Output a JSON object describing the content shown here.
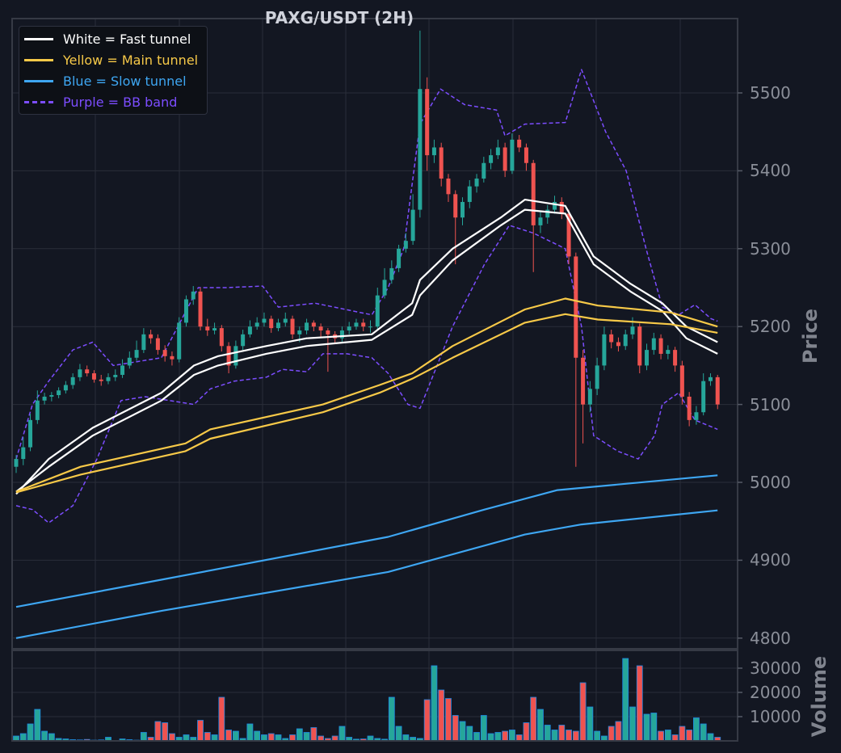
{
  "chart_data": {
    "type": "candlestick",
    "title": "PAXG/USDT (2H)",
    "ylabel": "Price",
    "volume_label": "Volume",
    "ylim": [
      4790,
      5595
    ],
    "volume_ylim": [
      0,
      37000
    ],
    "yticks": [
      4800,
      4900,
      5000,
      5100,
      5200,
      5300,
      5400,
      5500
    ],
    "volume_yticks": [
      10000,
      20000,
      30000
    ],
    "grid": true,
    "legend_position": "top-left",
    "legend": [
      {
        "label": "White = Fast tunnel",
        "color": "#ffffff",
        "style": "solid"
      },
      {
        "label": "Yellow = Main tunnel",
        "color": "#f7c948",
        "style": "solid"
      },
      {
        "label": "Blue = Slow tunnel",
        "color": "#3ea6f2",
        "style": "solid"
      },
      {
        "label": "Purple = BB band",
        "color": "#7c4dff",
        "style": "dashed"
      }
    ],
    "colors": {
      "up": "#26a69a",
      "down": "#ef5350",
      "volume_edge": "#1e88e5"
    },
    "candles_ohlc": [
      [
        5020,
        5035,
        5012,
        5030
      ],
      [
        5030,
        5058,
        5022,
        5045
      ],
      [
        5045,
        5088,
        5040,
        5080
      ],
      [
        5080,
        5118,
        5075,
        5105
      ],
      [
        5105,
        5115,
        5100,
        5110
      ],
      [
        5110,
        5116,
        5104,
        5112
      ],
      [
        5112,
        5122,
        5108,
        5118
      ],
      [
        5118,
        5130,
        5114,
        5125
      ],
      [
        5125,
        5140,
        5120,
        5135
      ],
      [
        5135,
        5152,
        5130,
        5145
      ],
      [
        5145,
        5150,
        5136,
        5140
      ],
      [
        5140,
        5144,
        5128,
        5132
      ],
      [
        5132,
        5138,
        5124,
        5130
      ],
      [
        5130,
        5140,
        5126,
        5135
      ],
      [
        5135,
        5145,
        5130,
        5138
      ],
      [
        5138,
        5158,
        5134,
        5150
      ],
      [
        5150,
        5168,
        5146,
        5160
      ],
      [
        5160,
        5182,
        5156,
        5170
      ],
      [
        5170,
        5198,
        5166,
        5190
      ],
      [
        5190,
        5196,
        5178,
        5185
      ],
      [
        5185,
        5190,
        5164,
        5170
      ],
      [
        5170,
        5176,
        5155,
        5162
      ],
      [
        5162,
        5168,
        5150,
        5158
      ],
      [
        5158,
        5212,
        5154,
        5205
      ],
      [
        5205,
        5240,
        5200,
        5235
      ],
      [
        5235,
        5252,
        5228,
        5245
      ],
      [
        5245,
        5250,
        5195,
        5200
      ],
      [
        5200,
        5210,
        5188,
        5195
      ],
      [
        5195,
        5205,
        5190,
        5198
      ],
      [
        5198,
        5202,
        5168,
        5175
      ],
      [
        5175,
        5180,
        5140,
        5150
      ],
      [
        5150,
        5182,
        5146,
        5175
      ],
      [
        5175,
        5196,
        5170,
        5190
      ],
      [
        5190,
        5208,
        5186,
        5200
      ],
      [
        5200,
        5212,
        5196,
        5205
      ],
      [
        5205,
        5218,
        5200,
        5210
      ],
      [
        5210,
        5214,
        5192,
        5198
      ],
      [
        5198,
        5210,
        5194,
        5205
      ],
      [
        5205,
        5218,
        5200,
        5210
      ],
      [
        5210,
        5214,
        5184,
        5190
      ],
      [
        5190,
        5200,
        5180,
        5195
      ],
      [
        5195,
        5210,
        5190,
        5205
      ],
      [
        5205,
        5208,
        5194,
        5200
      ],
      [
        5200,
        5204,
        5186,
        5195
      ],
      [
        5195,
        5198,
        5142,
        5190
      ],
      [
        5190,
        5194,
        5178,
        5185
      ],
      [
        5185,
        5200,
        5180,
        5195
      ],
      [
        5195,
        5206,
        5190,
        5200
      ],
      [
        5200,
        5210,
        5196,
        5205
      ],
      [
        5205,
        5210,
        5194,
        5200
      ],
      [
        5200,
        5208,
        5192,
        5200
      ],
      [
        5200,
        5250,
        5196,
        5240
      ],
      [
        5240,
        5275,
        5236,
        5260
      ],
      [
        5260,
        5285,
        5255,
        5275
      ],
      [
        5275,
        5305,
        5270,
        5300
      ],
      [
        5300,
        5320,
        5295,
        5310
      ],
      [
        5310,
        5370,
        5305,
        5350
      ],
      [
        5350,
        5580,
        5340,
        5505
      ],
      [
        5505,
        5520,
        5400,
        5420
      ],
      [
        5420,
        5440,
        5410,
        5430
      ],
      [
        5430,
        5436,
        5380,
        5390
      ],
      [
        5390,
        5396,
        5360,
        5370
      ],
      [
        5370,
        5375,
        5280,
        5340
      ],
      [
        5340,
        5366,
        5330,
        5360
      ],
      [
        5360,
        5388,
        5352,
        5380
      ],
      [
        5380,
        5396,
        5372,
        5390
      ],
      [
        5390,
        5418,
        5385,
        5410
      ],
      [
        5410,
        5428,
        5402,
        5420
      ],
      [
        5420,
        5440,
        5415,
        5430
      ],
      [
        5430,
        5436,
        5392,
        5400
      ],
      [
        5400,
        5448,
        5396,
        5440
      ],
      [
        5440,
        5446,
        5424,
        5430
      ],
      [
        5430,
        5435,
        5400,
        5410
      ],
      [
        5410,
        5414,
        5270,
        5330
      ],
      [
        5330,
        5348,
        5320,
        5340
      ],
      [
        5340,
        5356,
        5332,
        5350
      ],
      [
        5350,
        5368,
        5345,
        5360
      ],
      [
        5360,
        5366,
        5338,
        5345
      ],
      [
        5345,
        5350,
        5280,
        5290
      ],
      [
        5290,
        5295,
        5020,
        5160
      ],
      [
        5160,
        5170,
        5050,
        5100
      ],
      [
        5100,
        5130,
        5090,
        5120
      ],
      [
        5120,
        5160,
        5112,
        5150
      ],
      [
        5150,
        5200,
        5144,
        5190
      ],
      [
        5190,
        5196,
        5172,
        5180
      ],
      [
        5180,
        5186,
        5168,
        5175
      ],
      [
        5175,
        5196,
        5170,
        5190
      ],
      [
        5190,
        5212,
        5184,
        5200
      ],
      [
        5200,
        5204,
        5140,
        5150
      ],
      [
        5150,
        5178,
        5144,
        5170
      ],
      [
        5170,
        5192,
        5164,
        5185
      ],
      [
        5185,
        5190,
        5158,
        5165
      ],
      [
        5165,
        5176,
        5158,
        5170
      ],
      [
        5170,
        5174,
        5142,
        5150
      ],
      [
        5150,
        5156,
        5100,
        5110
      ],
      [
        5110,
        5116,
        5072,
        5080
      ],
      [
        5080,
        5098,
        5074,
        5090
      ],
      [
        5090,
        5140,
        5086,
        5130
      ],
      [
        5130,
        5140,
        5124,
        5135
      ],
      [
        5135,
        5138,
        5094,
        5100
      ]
    ],
    "volume": [
      2000,
      3000,
      7000,
      13000,
      4000,
      3000,
      1000,
      800,
      500,
      400,
      600,
      300,
      400,
      1500,
      200,
      800,
      500,
      300,
      3500,
      1500,
      8000,
      7500,
      3000,
      1500,
      2500,
      1500,
      8500,
      3500,
      2500,
      18000,
      4500,
      4000,
      1000,
      7000,
      4000,
      2500,
      3000,
      2500,
      1000,
      2500,
      5000,
      3500,
      5500,
      2000,
      1000,
      2000,
      6000,
      1500,
      700,
      800,
      2000,
      1000,
      700,
      18000,
      6000,
      2500,
      1500,
      1000,
      17000,
      31000,
      21000,
      17500,
      10500,
      8000,
      6000,
      3500,
      10500,
      3000,
      3500,
      4000,
      4500,
      2500,
      7500,
      18000,
      13000,
      6500,
      4500,
      6500,
      4500,
      4000,
      24000,
      14000,
      4000,
      2000,
      6000,
      8000,
      34000,
      14000,
      31000,
      11000,
      11500,
      4000,
      4500,
      2500,
      6000,
      4500,
      9500,
      7000,
      3000,
      1500
    ],
    "overlays": [
      {
        "name": "fast_upper",
        "color": "#ffffff",
        "points": [
          [
            0,
            4985
          ],
          [
            4.6,
            5030
          ],
          [
            10.8,
            5070
          ],
          [
            20.5,
            5115
          ],
          [
            25.1,
            5150
          ],
          [
            28.5,
            5162
          ],
          [
            35.3,
            5175
          ],
          [
            41,
            5185
          ],
          [
            50.2,
            5190
          ],
          [
            55.9,
            5230
          ],
          [
            57,
            5260
          ],
          [
            61.6,
            5300
          ],
          [
            68.4,
            5340
          ],
          [
            71.8,
            5363
          ],
          [
            77.5,
            5355
          ],
          [
            81.5,
            5290
          ],
          [
            86.7,
            5255
          ],
          [
            91.2,
            5230
          ],
          [
            94.6,
            5200
          ],
          [
            99,
            5180
          ]
        ]
      },
      {
        "name": "fast_lower",
        "color": "#ffffff",
        "points": [
          [
            0,
            4988
          ],
          [
            4.6,
            5020
          ],
          [
            10.8,
            5060
          ],
          [
            20.5,
            5105
          ],
          [
            25.1,
            5138
          ],
          [
            28.5,
            5150
          ],
          [
            35.3,
            5165
          ],
          [
            41,
            5175
          ],
          [
            50.2,
            5183
          ],
          [
            55.9,
            5215
          ],
          [
            57,
            5240
          ],
          [
            61.6,
            5285
          ],
          [
            68.4,
            5330
          ],
          [
            71.8,
            5350
          ],
          [
            77.5,
            5345
          ],
          [
            81.5,
            5280
          ],
          [
            86.7,
            5245
          ],
          [
            91.2,
            5220
          ],
          [
            94.6,
            5185
          ],
          [
            99,
            5165
          ]
        ]
      },
      {
        "name": "main_upper",
        "color": "#f7c948",
        "points": [
          [
            0,
            4988
          ],
          [
            9.1,
            5020
          ],
          [
            23.9,
            5050
          ],
          [
            27.4,
            5068
          ],
          [
            43.3,
            5100
          ],
          [
            51.3,
            5125
          ],
          [
            55.9,
            5140
          ],
          [
            61.6,
            5175
          ],
          [
            71.8,
            5222
          ],
          [
            77.5,
            5236
          ],
          [
            82.1,
            5227
          ],
          [
            92.4,
            5218
          ],
          [
            99,
            5200
          ]
        ]
      },
      {
        "name": "main_lower",
        "color": "#f7c948",
        "points": [
          [
            0,
            4987
          ],
          [
            9.1,
            5010
          ],
          [
            23.9,
            5040
          ],
          [
            27.4,
            5056
          ],
          [
            43.3,
            5090
          ],
          [
            51.3,
            5115
          ],
          [
            55.9,
            5133
          ],
          [
            61.6,
            5160
          ],
          [
            71.8,
            5205
          ],
          [
            77.5,
            5216
          ],
          [
            82.1,
            5209
          ],
          [
            92.4,
            5203
          ],
          [
            99,
            5192
          ]
        ]
      },
      {
        "name": "slow_upper",
        "color": "#3ea6f2",
        "points": [
          [
            0,
            4840
          ],
          [
            20.5,
            4875
          ],
          [
            52.5,
            4930
          ],
          [
            66.1,
            4965
          ],
          [
            76.4,
            4990
          ],
          [
            99,
            5009
          ]
        ]
      },
      {
        "name": "slow_lower",
        "color": "#3ea6f2",
        "points": [
          [
            0,
            4800
          ],
          [
            20.5,
            4835
          ],
          [
            52.5,
            4885
          ],
          [
            71.8,
            4933
          ],
          [
            79.8,
            4946
          ],
          [
            99,
            4964
          ]
        ]
      },
      {
        "name": "bb_upper",
        "color": "#7c4dff",
        "dashed": true,
        "points": [
          [
            0,
            5030
          ],
          [
            2.3,
            5100
          ],
          [
            4.6,
            5130
          ],
          [
            8,
            5170
          ],
          [
            10.8,
            5180
          ],
          [
            13.7,
            5150
          ],
          [
            20.5,
            5160
          ],
          [
            23.4,
            5210
          ],
          [
            25.7,
            5250
          ],
          [
            29.6,
            5250
          ],
          [
            34.8,
            5252
          ],
          [
            37,
            5225
          ],
          [
            42.2,
            5230
          ],
          [
            50.2,
            5215
          ],
          [
            52.5,
            5250
          ],
          [
            54.7,
            5300
          ],
          [
            57,
            5460
          ],
          [
            59.9,
            5505
          ],
          [
            63.3,
            5485
          ],
          [
            67.8,
            5478
          ],
          [
            69,
            5445
          ],
          [
            71.8,
            5460
          ],
          [
            77.5,
            5462
          ],
          [
            79.8,
            5530
          ],
          [
            83.2,
            5450
          ],
          [
            86.1,
            5400
          ],
          [
            88.9,
            5300
          ],
          [
            91.2,
            5225
          ],
          [
            93.5,
            5215
          ],
          [
            95.8,
            5228
          ],
          [
            98.1,
            5210
          ],
          [
            99,
            5207
          ]
        ]
      },
      {
        "name": "bb_lower",
        "color": "#7c4dff",
        "dashed": true,
        "points": [
          [
            0,
            4970
          ],
          [
            2.3,
            4965
          ],
          [
            4.6,
            4948
          ],
          [
            8,
            4970
          ],
          [
            11.4,
            5030
          ],
          [
            14.8,
            5105
          ],
          [
            18.2,
            5110
          ],
          [
            21.7,
            5105
          ],
          [
            25.1,
            5100
          ],
          [
            27.4,
            5120
          ],
          [
            30.8,
            5130
          ],
          [
            35.3,
            5135
          ],
          [
            37.6,
            5145
          ],
          [
            41,
            5142
          ],
          [
            43.3,
            5165
          ],
          [
            46.7,
            5165
          ],
          [
            50.2,
            5160
          ],
          [
            52.5,
            5140
          ],
          [
            55.3,
            5100
          ],
          [
            57,
            5095
          ],
          [
            61.6,
            5200
          ],
          [
            66.1,
            5280
          ],
          [
            69.6,
            5330
          ],
          [
            73,
            5320
          ],
          [
            77.5,
            5300
          ],
          [
            79.8,
            5200
          ],
          [
            81.5,
            5060
          ],
          [
            84.9,
            5040
          ],
          [
            87.8,
            5030
          ],
          [
            90.1,
            5060
          ],
          [
            91.2,
            5100
          ],
          [
            93.5,
            5115
          ],
          [
            95.8,
            5080
          ],
          [
            99,
            5068
          ]
        ]
      }
    ]
  }
}
